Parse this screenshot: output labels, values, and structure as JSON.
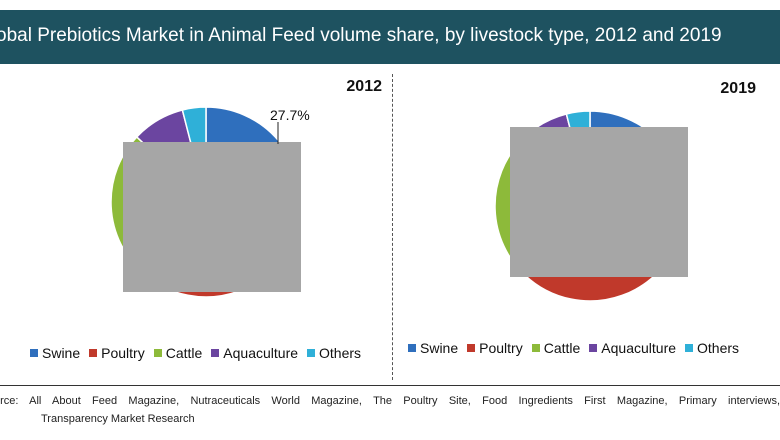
{
  "title": "obal Prebiotics Market in Animal Feed volume share, by livestock type, 2012 and 2019",
  "colors": {
    "banner": "#1e5260",
    "Swine": "#2f6fbd",
    "Poultry": "#c0392b",
    "Cattle": "#8dba3a",
    "Aquaculture": "#6b45a0",
    "Others": "#2fb0d8",
    "occluder": "#a6a6a6"
  },
  "chart_data": [
    {
      "type": "pie",
      "title": "2012",
      "labels": [
        "Swine",
        "Poultry",
        "Cattle",
        "Aquaculture",
        "Others"
      ],
      "values": [
        27.7,
        33.8,
        25.5,
        9.0,
        4.0
      ],
      "annotations": [
        {
          "label": "27.7%",
          "series": "Swine"
        }
      ],
      "legend": "bottom",
      "note": "most of the pie is covered by a grey box"
    },
    {
      "type": "pie",
      "title": "2019",
      "labels": [
        "Swine",
        "Poultry",
        "Cattle",
        "Aquaculture",
        "Others"
      ],
      "values": [
        27.0,
        35.0,
        25.0,
        9.0,
        4.0
      ],
      "legend": "bottom",
      "note": "most of the pie is covered by a grey box"
    }
  ],
  "legend_labels": [
    "Swine",
    "Poultry",
    "Cattle",
    "Aquaculture",
    "Others"
  ],
  "source": {
    "line1": "urce: All About Feed Magazine, Nutraceuticals World Magazine, The Poultry Site, Food Ingredients First Magazine, Primary interviews,",
    "line2": "Transparency Market Research"
  }
}
